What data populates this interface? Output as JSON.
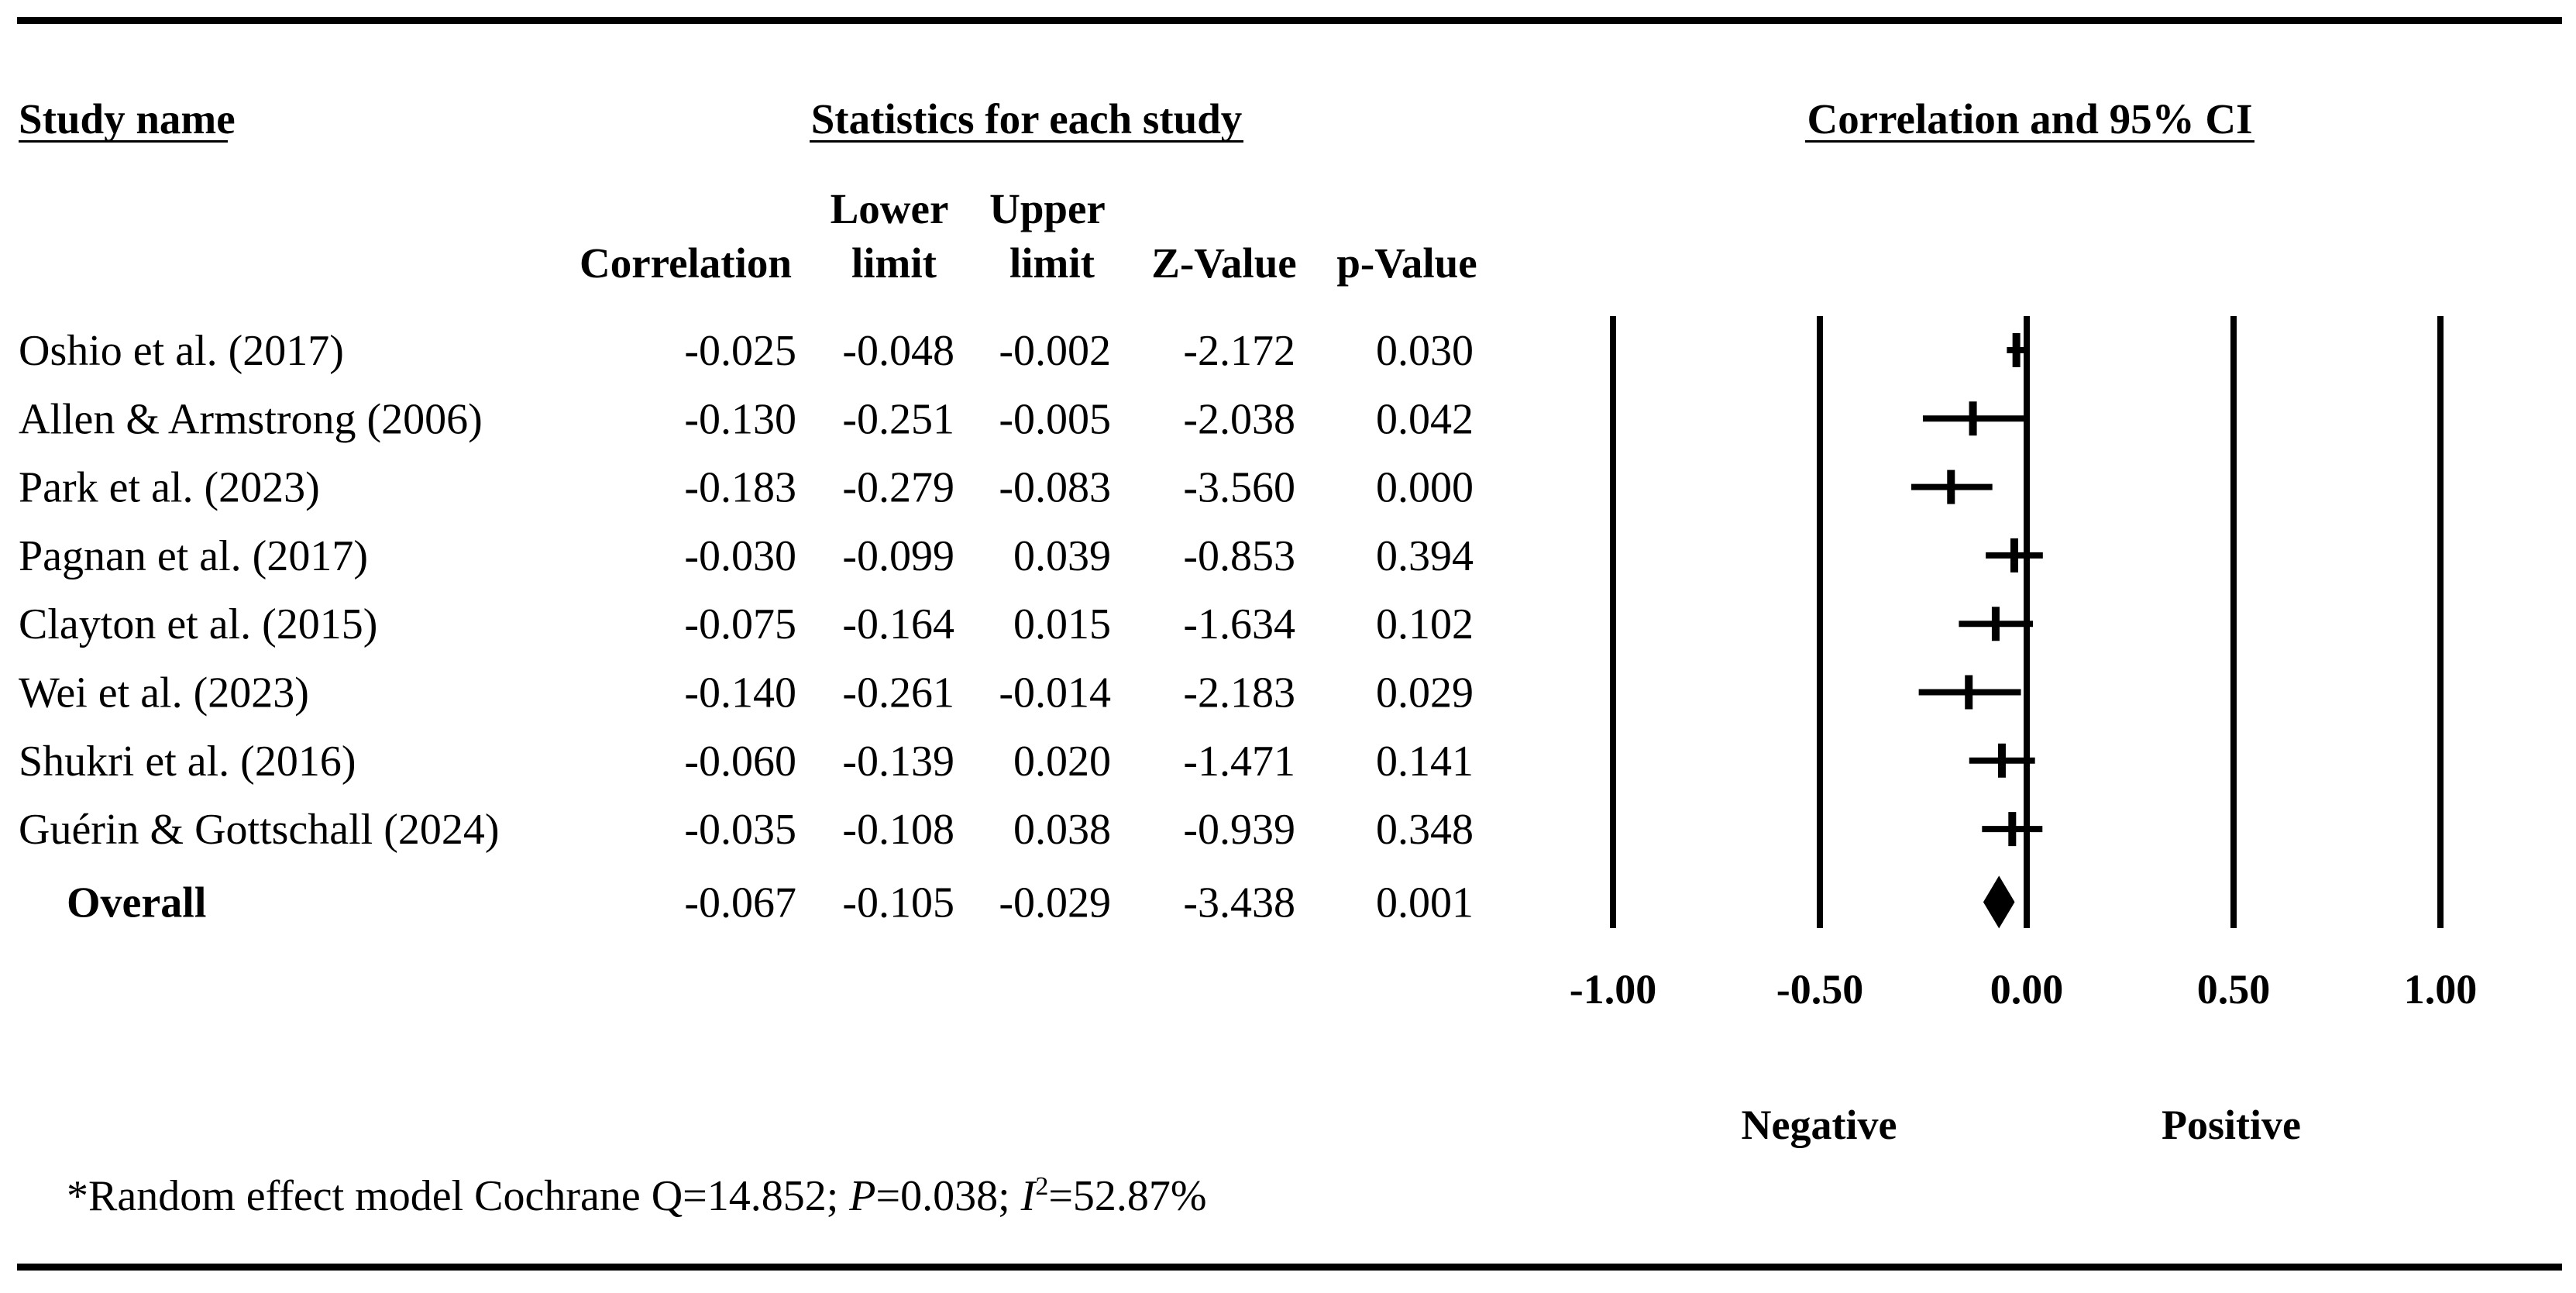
{
  "headers": {
    "study_name": "Study name",
    "statistics": "Statistics for each study",
    "plot_title": "Correlation and 95% CI",
    "col_correlation": "Correlation",
    "col_lower_1": "Lower",
    "col_lower_2": "limit",
    "col_upper_1": "Upper",
    "col_upper_2": "limit",
    "col_z": "Z-Value",
    "col_p": "p-Value"
  },
  "footnote": {
    "prefix": "*Random effect model  Cochrane Q=14.852; ",
    "p_letter": "P",
    "p_value": "=0.038; ",
    "i_letter": "I",
    "i_sup": "2",
    "i_value": "=52.87%"
  },
  "chart_data": {
    "type": "forest",
    "title": "Correlation and 95% CI",
    "xlim": [
      -1.0,
      1.0
    ],
    "ticks": [
      "-1.00",
      "-0.50",
      "0.00",
      "0.50",
      "1.00"
    ],
    "tick_values": [
      -1.0,
      -0.5,
      0.0,
      0.5,
      1.0
    ],
    "xlabel_left": "Negative",
    "xlabel_right": "Positive",
    "studies": [
      {
        "name": "Oshio et al. (2017)",
        "correlation": "-0.025",
        "lower": "-0.048",
        "upper": "-0.002",
        "z": "-2.172",
        "p": "0.030"
      },
      {
        "name": "Allen & Armstrong (2006)",
        "correlation": "-0.130",
        "lower": "-0.251",
        "upper": "-0.005",
        "z": "-2.038",
        "p": "0.042"
      },
      {
        "name": "Park et al. (2023)",
        "correlation": "-0.183",
        "lower": "-0.279",
        "upper": "-0.083",
        "z": "-3.560",
        "p": "0.000"
      },
      {
        "name": "Pagnan et al. (2017)",
        "correlation": "-0.030",
        "lower": "-0.099",
        "upper": "0.039",
        "z": "-0.853",
        "p": "0.394"
      },
      {
        "name": "Clayton et al. (2015)",
        "correlation": "-0.075",
        "lower": "-0.164",
        "upper": "0.015",
        "z": "-1.634",
        "p": "0.102"
      },
      {
        "name": "Wei et al. (2023)",
        "correlation": "-0.140",
        "lower": "-0.261",
        "upper": "-0.014",
        "z": "-2.183",
        "p": "0.029"
      },
      {
        "name": "Shukri et al. (2016)",
        "correlation": "-0.060",
        "lower": "-0.139",
        "upper": "0.020",
        "z": "-1.471",
        "p": "0.141"
      },
      {
        "name": "Guérin & Gottschall (2024)",
        "correlation": "-0.035",
        "lower": "-0.108",
        "upper": "0.038",
        "z": "-0.939",
        "p": "0.348"
      }
    ],
    "overall": {
      "name": "Overall",
      "correlation": "-0.067",
      "lower": "-0.105",
      "upper": "-0.029",
      "z": "-3.438",
      "p": "0.001"
    }
  }
}
